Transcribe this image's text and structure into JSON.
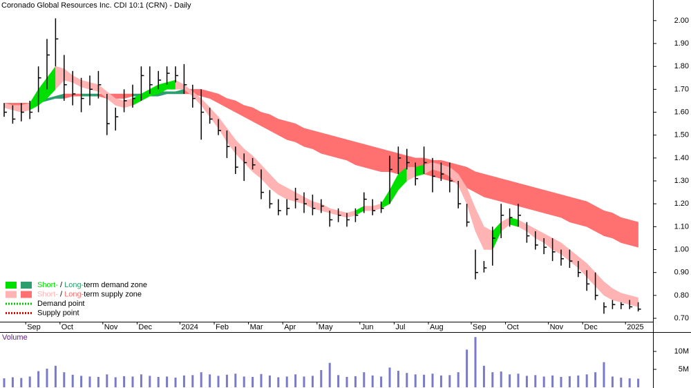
{
  "chart_data": [
    {
      "type": "ohlc",
      "title": "Coronado Global Resources Inc. CDI 10:1 (CRN) - Daily",
      "categories": [
        null,
        null,
        null,
        "Sep",
        null,
        null,
        null,
        "Oct",
        null,
        null,
        null,
        null,
        "Nov",
        null,
        null,
        null,
        "Dec",
        null,
        null,
        null,
        null,
        "2024",
        null,
        null,
        null,
        "Feb",
        null,
        null,
        null,
        "Mar",
        null,
        null,
        null,
        "Apr",
        null,
        null,
        null,
        "May",
        null,
        null,
        null,
        null,
        "Jun",
        null,
        null,
        null,
        "Jul",
        null,
        null,
        null,
        "Aug",
        null,
        null,
        null,
        null,
        "Sep",
        null,
        null,
        null,
        "Oct",
        null,
        null,
        null,
        null,
        "Nov",
        null,
        null,
        null,
        "Dec",
        null,
        null,
        null,
        null,
        "2025",
        null
      ],
      "highs": [
        1.64,
        1.63,
        1.64,
        1.65,
        1.8,
        1.92,
        2.01,
        1.85,
        1.78,
        1.75,
        1.76,
        1.78,
        1.68,
        1.62,
        1.7,
        1.72,
        1.8,
        1.8,
        1.78,
        1.8,
        1.8,
        1.81,
        1.72,
        1.7,
        1.62,
        1.57,
        1.52,
        1.45,
        1.42,
        1.4,
        1.35,
        1.26,
        1.22,
        1.22,
        1.27,
        1.25,
        1.24,
        1.22,
        1.17,
        1.18,
        1.16,
        1.18,
        1.25,
        1.22,
        1.21,
        1.41,
        1.45,
        1.44,
        1.38,
        1.45,
        1.4,
        1.38,
        1.38,
        1.3,
        1.2,
        1.0,
        0.95,
        1.1,
        1.2,
        1.18,
        1.2,
        1.12,
        1.08,
        1.05,
        1.05,
        1.0,
        1.0,
        0.95,
        0.91,
        0.9,
        0.77,
        0.78,
        0.77,
        0.78,
        0.77
      ],
      "lows": [
        1.58,
        1.55,
        1.56,
        1.57,
        1.6,
        1.7,
        1.8,
        1.65,
        1.63,
        1.6,
        1.63,
        1.66,
        1.5,
        1.52,
        1.6,
        1.62,
        1.65,
        1.68,
        1.7,
        1.72,
        1.73,
        1.68,
        1.62,
        1.48,
        1.55,
        1.5,
        1.4,
        1.33,
        1.3,
        1.35,
        1.22,
        1.18,
        1.15,
        1.15,
        1.18,
        1.16,
        1.15,
        1.16,
        1.1,
        1.12,
        1.1,
        1.12,
        1.16,
        1.15,
        1.16,
        1.2,
        1.33,
        1.35,
        1.28,
        1.33,
        1.25,
        1.3,
        1.25,
        1.18,
        1.1,
        0.87,
        0.9,
        0.93,
        1.05,
        1.1,
        1.1,
        1.03,
        1.0,
        0.98,
        0.95,
        0.93,
        0.92,
        0.88,
        0.82,
        0.78,
        0.72,
        0.74,
        0.74,
        0.74,
        0.73
      ],
      "closes": [
        1.6,
        1.57,
        1.6,
        1.6,
        1.75,
        1.85,
        1.92,
        1.72,
        1.68,
        1.66,
        1.7,
        1.72,
        1.55,
        1.58,
        1.65,
        1.66,
        1.76,
        1.72,
        1.74,
        1.77,
        1.76,
        1.72,
        1.66,
        1.6,
        1.57,
        1.52,
        1.45,
        1.36,
        1.38,
        1.37,
        1.25,
        1.2,
        1.17,
        1.18,
        1.22,
        1.2,
        1.18,
        1.19,
        1.13,
        1.15,
        1.13,
        1.15,
        1.22,
        1.17,
        1.18,
        1.35,
        1.4,
        1.38,
        1.31,
        1.38,
        1.32,
        1.33,
        1.3,
        1.2,
        1.12,
        0.9,
        0.92,
        1.05,
        1.15,
        1.14,
        1.15,
        1.06,
        1.02,
        1.01,
        0.99,
        0.96,
        0.95,
        0.9,
        0.85,
        0.8,
        0.75,
        0.76,
        0.76,
        0.75,
        0.74
      ],
      "color": "#000000",
      "zones": [
        {
          "upper": [
            1.64,
            1.63,
            1.63,
            1.64,
            1.7,
            1.75,
            1.8,
            1.79,
            1.76,
            1.74,
            1.73,
            1.72,
            1.69,
            1.66,
            1.65,
            1.66,
            1.68,
            1.7,
            1.72,
            1.73,
            1.74,
            1.72,
            1.69,
            1.66,
            1.62,
            1.58,
            1.53,
            1.48,
            1.44,
            1.41,
            1.37,
            1.33,
            1.29,
            1.27,
            1.25,
            1.23,
            1.21,
            1.2,
            1.18,
            1.17,
            1.16,
            1.17,
            1.19,
            1.19,
            1.2,
            1.26,
            1.33,
            1.36,
            1.36,
            1.37,
            1.38,
            1.37,
            1.36,
            1.33,
            1.27,
            1.18,
            1.1,
            1.08,
            1.12,
            1.14,
            1.13,
            1.11,
            1.09,
            1.07,
            1.05,
            1.03,
            1.0,
            0.97,
            0.94,
            0.9,
            0.86,
            0.83,
            0.81,
            0.8,
            0.79
          ],
          "lower": [
            1.62,
            1.61,
            1.6,
            1.61,
            1.63,
            1.66,
            1.7,
            1.74,
            1.73,
            1.71,
            1.7,
            1.69,
            1.66,
            1.63,
            1.62,
            1.63,
            1.65,
            1.67,
            1.68,
            1.7,
            1.7,
            1.7,
            1.67,
            1.63,
            1.58,
            1.53,
            1.47,
            1.42,
            1.38,
            1.34,
            1.31,
            1.27,
            1.24,
            1.22,
            1.21,
            1.2,
            1.18,
            1.17,
            1.16,
            1.15,
            1.14,
            1.15,
            1.17,
            1.17,
            1.18,
            1.2,
            1.26,
            1.3,
            1.32,
            1.33,
            1.35,
            1.34,
            1.32,
            1.28,
            1.2,
            1.08,
            1.0,
            1.0,
            1.08,
            1.11,
            1.1,
            1.08,
            1.05,
            1.03,
            1.0,
            0.98,
            0.95,
            0.92,
            0.88,
            0.84,
            0.8,
            0.78,
            0.77,
            0.76,
            0.75
          ],
          "demand_color": "#00e000",
          "supply_color": "#ffb3b3"
        },
        {
          "upper": [
            1.64,
            1.64,
            1.64,
            1.64,
            1.65,
            1.66,
            1.67,
            1.68,
            1.68,
            1.68,
            1.68,
            1.68,
            1.68,
            1.68,
            1.68,
            1.68,
            1.68,
            1.69,
            1.69,
            1.69,
            1.69,
            1.7,
            1.7,
            1.7,
            1.69,
            1.68,
            1.66,
            1.65,
            1.63,
            1.62,
            1.6,
            1.59,
            1.57,
            1.56,
            1.55,
            1.53,
            1.52,
            1.51,
            1.5,
            1.49,
            1.48,
            1.47,
            1.46,
            1.45,
            1.44,
            1.43,
            1.42,
            1.41,
            1.4,
            1.4,
            1.39,
            1.39,
            1.38,
            1.37,
            1.36,
            1.34,
            1.33,
            1.32,
            1.31,
            1.3,
            1.29,
            1.28,
            1.27,
            1.26,
            1.25,
            1.24,
            1.23,
            1.22,
            1.21,
            1.19,
            1.17,
            1.16,
            1.14,
            1.13,
            1.12
          ],
          "lower": [
            1.63,
            1.63,
            1.63,
            1.63,
            1.64,
            1.65,
            1.66,
            1.66,
            1.67,
            1.67,
            1.67,
            1.67,
            1.66,
            1.66,
            1.66,
            1.67,
            1.67,
            1.67,
            1.67,
            1.68,
            1.68,
            1.68,
            1.68,
            1.67,
            1.66,
            1.64,
            1.62,
            1.6,
            1.58,
            1.56,
            1.54,
            1.52,
            1.5,
            1.48,
            1.47,
            1.45,
            1.44,
            1.42,
            1.41,
            1.4,
            1.39,
            1.37,
            1.36,
            1.35,
            1.34,
            1.34,
            1.33,
            1.33,
            1.33,
            1.33,
            1.32,
            1.31,
            1.3,
            1.29,
            1.27,
            1.25,
            1.23,
            1.22,
            1.21,
            1.2,
            1.19,
            1.18,
            1.17,
            1.16,
            1.15,
            1.14,
            1.12,
            1.11,
            1.1,
            1.08,
            1.06,
            1.05,
            1.03,
            1.02,
            1.01
          ],
          "demand_color": "#2e9e6e",
          "supply_color": "#ff7070"
        }
      ],
      "ylim": [
        0.685,
        2.09
      ],
      "yticks": [
        {
          "value": 0.7,
          "label": "0.70"
        },
        {
          "value": 0.8,
          "label": "0.80"
        },
        {
          "value": 0.9,
          "label": "0.90"
        },
        {
          "value": 1.0,
          "label": "1.00"
        },
        {
          "value": 1.1,
          "label": "1.10"
        },
        {
          "value": 1.2,
          "label": "1.20"
        },
        {
          "value": 1.3,
          "label": "1.30"
        },
        {
          "value": 1.4,
          "label": "1.40"
        },
        {
          "value": 1.5,
          "label": "1.50"
        },
        {
          "value": 1.6,
          "label": "1.60"
        },
        {
          "value": 1.7,
          "label": "1.70"
        },
        {
          "value": 1.8,
          "label": "1.80"
        },
        {
          "value": 1.9,
          "label": "1.90"
        },
        {
          "value": 2.0,
          "label": "2.00"
        }
      ],
      "legend": [
        {
          "parts": [
            "Short-",
            " / ",
            "Long-",
            "term demand zone"
          ],
          "colors": [
            "#00e000",
            "#2e9e6e"
          ]
        },
        {
          "parts": [
            "Short-",
            " / ",
            "Long-",
            "term supply zone"
          ],
          "colors": [
            "#ffb3b3",
            "#ff7070"
          ]
        },
        {
          "parts": [
            "Demand point"
          ],
          "colors": [
            "#00c000"
          ]
        },
        {
          "parts": [
            "Supply point"
          ],
          "colors": [
            "#e00000"
          ]
        }
      ]
    },
    {
      "type": "bar",
      "title": "Volume",
      "color": "#7a7ac8",
      "values": [
        2500000,
        2800000,
        2600000,
        3000000,
        4500000,
        5200000,
        6000000,
        4200000,
        3500000,
        3200000,
        3000000,
        2900000,
        3600000,
        2800000,
        3100000,
        3000000,
        3600000,
        3200000,
        2900000,
        3000000,
        2700000,
        3300000,
        3400000,
        4200000,
        3600000,
        3200000,
        3500000,
        3800000,
        3000000,
        2900000,
        3700000,
        3300000,
        2800000,
        3000000,
        3600000,
        3000000,
        3200000,
        4800000,
        6800000,
        3400000,
        2900000,
        3100000,
        4200000,
        3300000,
        3000000,
        5500000,
        4600000,
        4000000,
        3600000,
        3500000,
        3800000,
        3300000,
        3400000,
        4200000,
        10500000,
        14000000,
        6000000,
        4200000,
        4400000,
        3600000,
        3800000,
        3200000,
        3400000,
        3000000,
        3300000,
        2900000,
        3100000,
        3300000,
        3600000,
        4200000,
        7000000,
        3000000,
        2700000,
        2500000,
        2400000
      ],
      "ylim": [
        0,
        15000000
      ],
      "yticks": [
        {
          "value": 5000000,
          "label": "5M"
        },
        {
          "value": 10000000,
          "label": "10M"
        }
      ]
    }
  ]
}
